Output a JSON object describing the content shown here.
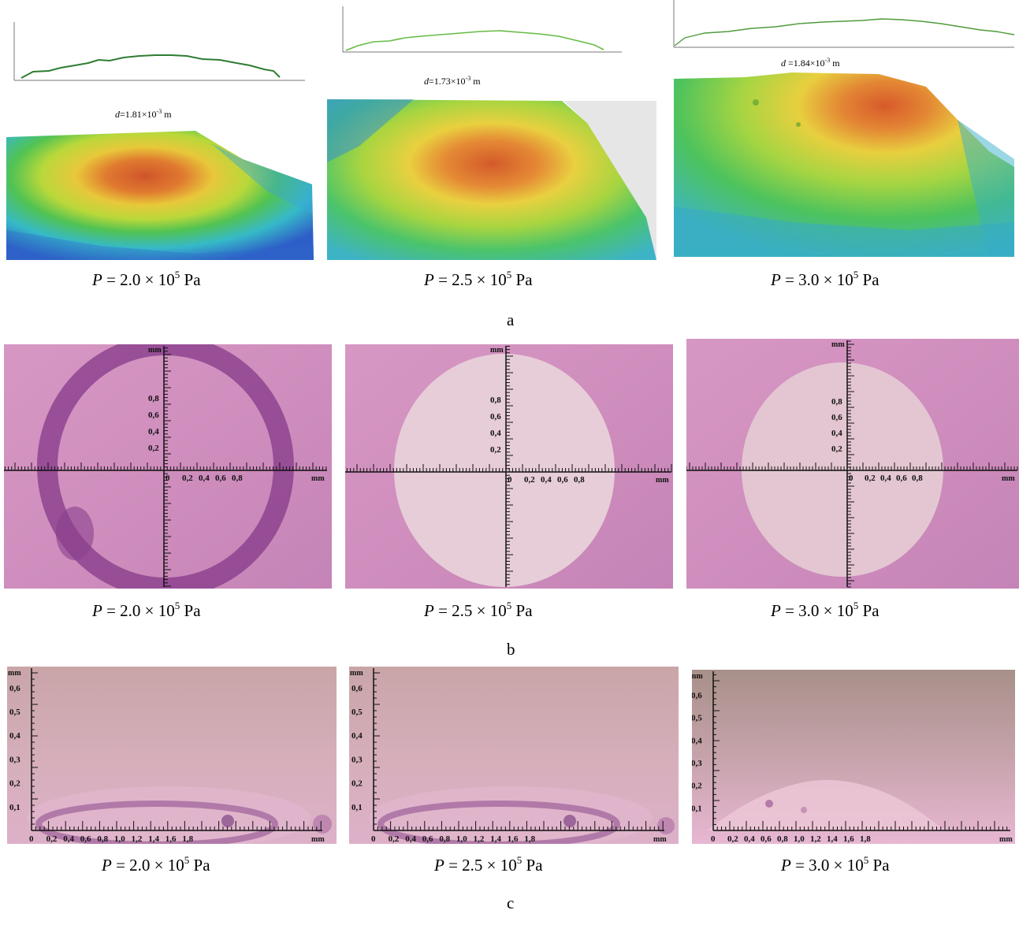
{
  "row_a": {
    "letter": "a",
    "panels": [
      {
        "d_symbol": "d",
        "d_value": "=1.81×10",
        "d_exp": "-3",
        "d_unit": " m",
        "caption": {
          "p": "P",
          "mid": " = 2.0 × 10",
          "exp": "5",
          "unit": " Pa"
        }
      },
      {
        "d_symbol": "d",
        "d_value": "=1.73×10",
        "d_exp": "-3",
        "d_unit": " m",
        "caption": {
          "p": "P",
          "mid": " = 2.5 × 10",
          "exp": "5",
          "unit": " Pa"
        }
      },
      {
        "d_symbol": "d ",
        "d_value": "=1.84×10",
        "d_exp": "-3",
        "d_unit": " m",
        "caption": {
          "p": "P",
          "mid": " = 3.0 × 10",
          "exp": "5",
          "unit": " Pa"
        }
      }
    ]
  },
  "row_b": {
    "letter": "b",
    "unit": "mm",
    "y_ticks": [
      "0,8",
      "0,6",
      "0,4",
      "0,2"
    ],
    "x_ticks": [
      "0",
      "0,2",
      "0,4",
      "0,6",
      "0,8"
    ],
    "panels": [
      {
        "caption": {
          "p": "P",
          "mid": " = 2.0 × 10",
          "exp": "5",
          "unit": " Pa"
        }
      },
      {
        "caption": {
          "p": "P",
          "mid": " = 2.5 × 10",
          "exp": "5",
          "unit": " Pa"
        }
      },
      {
        "caption": {
          "p": "P",
          "mid": " = 3.0 × 10",
          "exp": "5",
          "unit": " Pa"
        }
      }
    ]
  },
  "row_c": {
    "letter": "c",
    "unit": "mm",
    "y_ticks": [
      "0,6",
      "0,5",
      "0,4",
      "0,3",
      "0,2",
      "0,1"
    ],
    "x_ticks": [
      "0",
      "0,2",
      "0,4",
      "0,6",
      "0,8",
      "1,0",
      "1,2",
      "1,4",
      "1,6",
      "1,8"
    ],
    "panels": [
      {
        "caption": {
          "p": "P",
          "mid": " = 2.0 × 10",
          "exp": "5",
          "unit": " Pa"
        }
      },
      {
        "caption": {
          "p": "P",
          "mid": " = 2.5 × 10",
          "exp": "5",
          "unit": " Pa"
        }
      },
      {
        "caption": {
          "p": "P",
          "mid": " = 3.0 × 10",
          "exp": "5",
          "unit": " Pa"
        }
      }
    ]
  },
  "colors": {
    "profile_dark": "#2e7d32",
    "profile_light": "#66bb44",
    "stain": "#cf8fb8",
    "ruler": "#111111"
  }
}
